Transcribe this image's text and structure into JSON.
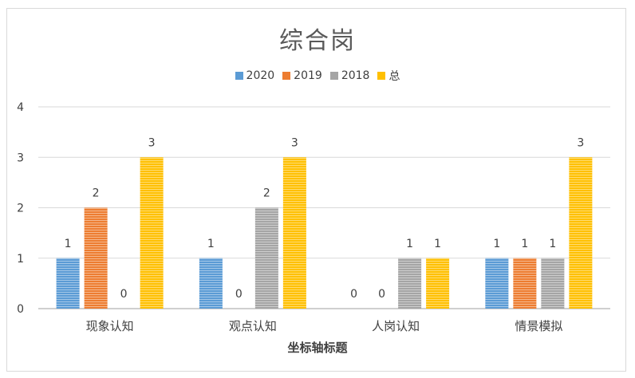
{
  "chart_data": {
    "type": "bar",
    "title": "综合岗",
    "categories": [
      "现象认知",
      "观点认知",
      "人岗认知",
      "情景模拟"
    ],
    "series": [
      {
        "name": "2020",
        "color": "#5b9bd5",
        "values": [
          1,
          1,
          0,
          1
        ]
      },
      {
        "name": "2019",
        "color": "#ed7d31",
        "values": [
          2,
          0,
          0,
          1
        ]
      },
      {
        "name": "2018",
        "color": "#a5a5a5",
        "values": [
          0,
          2,
          1,
          1
        ]
      },
      {
        "name": "总",
        "color": "#ffc000",
        "values": [
          3,
          3,
          1,
          3
        ]
      }
    ],
    "xlabel": "坐标轴标题",
    "ylabel": "",
    "ylim": [
      0,
      4
    ],
    "yticks": [
      0,
      1,
      2,
      3,
      4
    ],
    "grid": true,
    "legend_position": "top"
  }
}
